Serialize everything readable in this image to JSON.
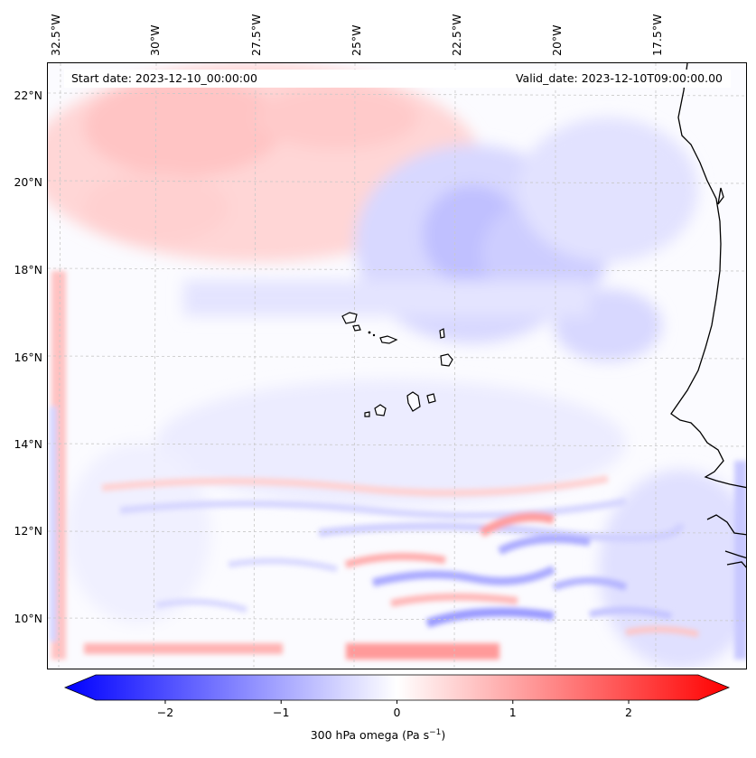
{
  "header": {
    "start_date": "Start date: 2023-12-10_00:00:00",
    "valid_date": "Valid_date: 2023-12-10T09:00:00.00"
  },
  "axes": {
    "lon_labels": [
      "32.5°W",
      "30°W",
      "27.5°W",
      "25°W",
      "22.5°W",
      "20°W",
      "17.5°W"
    ],
    "lat_labels": [
      "22°N",
      "20°N",
      "18°N",
      "16°N",
      "14°N",
      "12°N",
      "10°N"
    ]
  },
  "colorbar": {
    "label_prefix": "300 hPa omega (Pa s",
    "label_exponent": "−1",
    "label_suffix": ")",
    "ticks": [
      "−2",
      "−1",
      "0",
      "1",
      "2"
    ],
    "min": -2.6,
    "max": 2.6,
    "colors": {
      "low": "#0000ff",
      "mid": "#ffffff",
      "high": "#ff0000"
    }
  },
  "map": {
    "field": "300 hPa omega",
    "coastline_color": "#000000",
    "grid_color": "#c8c8c8"
  }
}
